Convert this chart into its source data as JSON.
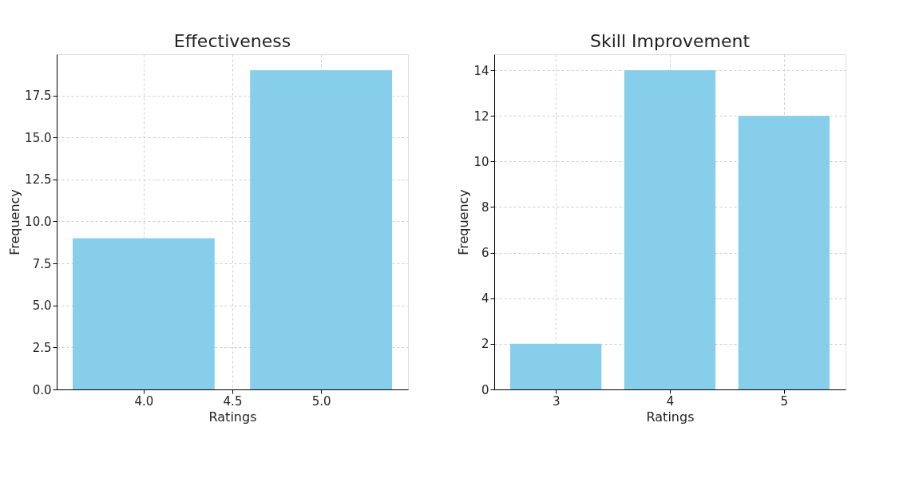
{
  "chart_data": [
    {
      "type": "bar",
      "title": "Effectiveness",
      "xlabel": "Ratings",
      "ylabel": "Frequency",
      "x": [
        4.0,
        5.0
      ],
      "values": [
        9,
        19
      ],
      "color": "#87ceeb",
      "xlim": [
        3.51,
        5.49
      ],
      "xticks": [
        {
          "value": 4,
          "label": "4.0"
        },
        {
          "value": 4.5,
          "label": "4.5"
        },
        {
          "value": 5,
          "label": "5.0"
        }
      ],
      "ylim": [
        0,
        19.95
      ],
      "yticks": [
        {
          "value": 0,
          "label": "0.0"
        },
        2.5,
        {
          "value": 5,
          "label": "5.0"
        },
        7.5,
        {
          "value": 10,
          "label": "10.0"
        },
        12.5,
        {
          "value": 15,
          "label": "15.0"
        },
        17.5
      ],
      "grid": true
    },
    {
      "type": "bar",
      "title": "Skill Improvement",
      "xlabel": "Ratings",
      "ylabel": "Frequency",
      "x": [
        3,
        4,
        5
      ],
      "values": [
        2,
        14,
        12
      ],
      "color": "#87ceeb",
      "xlim": [
        2.46,
        5.54
      ],
      "xticks": [
        3,
        4,
        5
      ],
      "ylim": [
        0,
        14.7
      ],
      "yticks": [
        0,
        2,
        4,
        6,
        8,
        10,
        12,
        14
      ],
      "grid": true
    }
  ]
}
